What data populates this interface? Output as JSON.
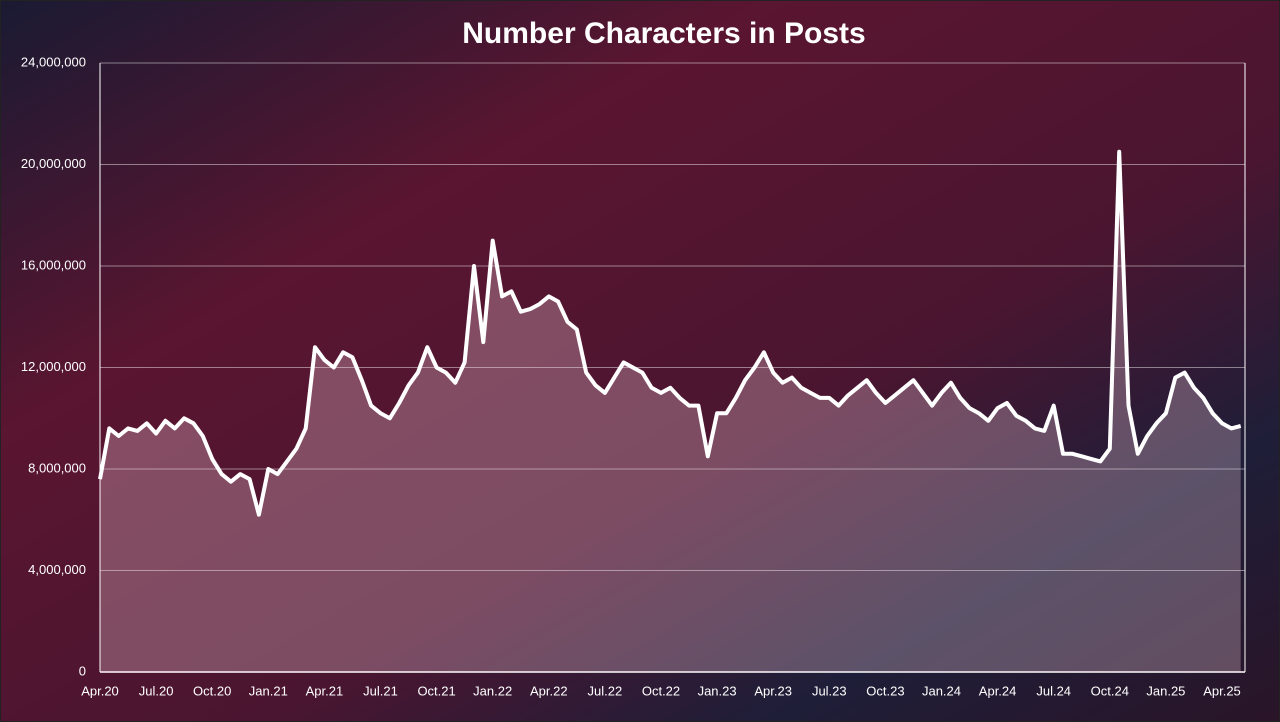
{
  "chart_data": {
    "type": "area",
    "title": "Number Characters in Posts",
    "categories": [
      "Apr.20",
      null,
      null,
      null,
      null,
      null,
      "Jul.20",
      null,
      null,
      null,
      null,
      null,
      "Oct.20",
      null,
      null,
      null,
      null,
      null,
      "Jan.21",
      null,
      null,
      null,
      null,
      null,
      "Apr.21",
      null,
      null,
      null,
      null,
      null,
      "Jul.21",
      null,
      null,
      null,
      null,
      null,
      "Oct.21",
      null,
      null,
      null,
      null,
      null,
      "Jan.22",
      null,
      null,
      null,
      null,
      null,
      "Apr.22",
      null,
      null,
      null,
      null,
      null,
      "Jul.22",
      null,
      null,
      null,
      null,
      null,
      "Oct.22",
      null,
      null,
      null,
      null,
      null,
      "Jan.23",
      null,
      null,
      null,
      null,
      null,
      "Apr.23",
      null,
      null,
      null,
      null,
      null,
      "Jul.23",
      null,
      null,
      null,
      null,
      null,
      "Oct.23",
      null,
      null,
      null,
      null,
      null,
      "Jan.24",
      null,
      null,
      null,
      null,
      null,
      "Apr.24",
      null,
      null,
      null,
      null,
      null,
      "Jul.24",
      null,
      null,
      null,
      null,
      null,
      "Oct.24",
      null,
      null,
      null,
      null,
      null,
      "Jan.25",
      null,
      null,
      null,
      null,
      null,
      "Apr.25",
      null,
      null
    ],
    "values": [
      7600000,
      9600000,
      9300000,
      9600000,
      9500000,
      9800000,
      9400000,
      9900000,
      9600000,
      10000000,
      9800000,
      9300000,
      8400000,
      7800000,
      7500000,
      7800000,
      7600000,
      6200000,
      8000000,
      7800000,
      8300000,
      8800000,
      9600000,
      12800000,
      12300000,
      12000000,
      12600000,
      12400000,
      11500000,
      10500000,
      10200000,
      10000000,
      10600000,
      11300000,
      11800000,
      12800000,
      12000000,
      11800000,
      11400000,
      12200000,
      16000000,
      13000000,
      17000000,
      14800000,
      15000000,
      14200000,
      14300000,
      14500000,
      14800000,
      14600000,
      13800000,
      13500000,
      11800000,
      11300000,
      11000000,
      11600000,
      12200000,
      12000000,
      11800000,
      11200000,
      11000000,
      11200000,
      10800000,
      10500000,
      10500000,
      8500000,
      10200000,
      10200000,
      10800000,
      11500000,
      12000000,
      12600000,
      11800000,
      11400000,
      11600000,
      11200000,
      11000000,
      10800000,
      10800000,
      10500000,
      10900000,
      11200000,
      11500000,
      11000000,
      10600000,
      10900000,
      11200000,
      11500000,
      11000000,
      10500000,
      11000000,
      11400000,
      10800000,
      10400000,
      10200000,
      9900000,
      10400000,
      10600000,
      10100000,
      9900000,
      9600000,
      9500000,
      10500000,
      8600000,
      8600000,
      8500000,
      8400000,
      8300000,
      8800000,
      20500000,
      10500000,
      8600000,
      9300000,
      9800000,
      10200000,
      11600000,
      11800000,
      11200000,
      10800000,
      10200000,
      9800000,
      9600000,
      9700000
    ],
    "color": "#ffffff",
    "ylim": [
      0,
      24000000
    ],
    "yticks": [
      0,
      {
        "value": 4000000,
        "label": "4,000,000"
      },
      {
        "value": 8000000,
        "label": "8,000,000"
      },
      {
        "value": 12000000,
        "label": "12,000,000"
      },
      {
        "value": 16000000,
        "label": "16,000,000"
      },
      {
        "value": 20000000,
        "label": "20,000,000"
      },
      {
        "value": 24000000,
        "label": "24,000,000"
      }
    ],
    "grid": true
  }
}
